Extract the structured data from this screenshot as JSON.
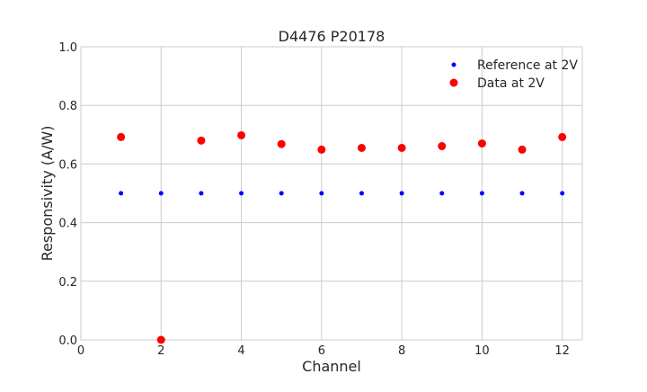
{
  "chart_data": {
    "type": "scatter",
    "title": "D4476 P20178",
    "xlabel": "Channel",
    "ylabel": "Responsivity (A/W)",
    "xlim": [
      0,
      12.5
    ],
    "ylim": [
      0.0,
      1.0
    ],
    "xticks": [
      0,
      2,
      4,
      6,
      8,
      10,
      12
    ],
    "yticks": [
      0.0,
      0.2,
      0.4,
      0.6,
      0.8,
      1.0
    ],
    "ytick_labels": [
      "0.0",
      "0.2",
      "0.4",
      "0.6",
      "0.8",
      "1.0"
    ],
    "grid": true,
    "legend_position": "top-right",
    "series": [
      {
        "name": "Reference at 2V",
        "color": "#0000ff",
        "marker_size": "small",
        "x": [
          1,
          2,
          3,
          4,
          5,
          6,
          7,
          8,
          9,
          10,
          11,
          12
        ],
        "y": [
          0.5,
          0.5,
          0.5,
          0.5,
          0.5,
          0.5,
          0.5,
          0.5,
          0.5,
          0.5,
          0.5,
          0.5
        ]
      },
      {
        "name": "Data at 2V",
        "color": "#ff0000",
        "marker_size": "large",
        "x": [
          1,
          2,
          3,
          4,
          5,
          6,
          7,
          8,
          9,
          10,
          11,
          12
        ],
        "y": [
          0.692,
          0.0,
          0.68,
          0.698,
          0.668,
          0.649,
          0.655,
          0.655,
          0.661,
          0.67,
          0.649,
          0.692
        ]
      }
    ]
  }
}
